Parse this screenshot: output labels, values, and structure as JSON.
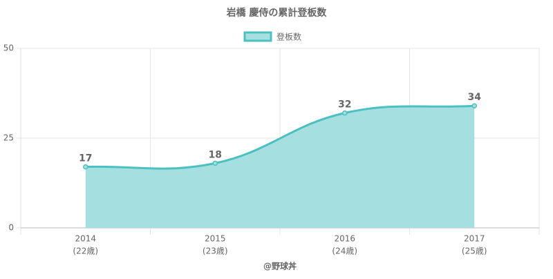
{
  "chart_data": {
    "type": "area",
    "title": "岩橋 慶侍の累計登板数",
    "categories": [
      "2014",
      "2015",
      "2016",
      "2017"
    ],
    "category_sublabels": [
      "(22歳)",
      "(23歳)",
      "(24歳)",
      "(25歳)"
    ],
    "x_label": "@野球丼",
    "series": [
      {
        "name": "登板数",
        "color": "#4bc0c0",
        "fill": "#a5dfdf",
        "values": [
          17,
          18,
          32,
          34
        ]
      }
    ],
    "ylim": [
      0,
      50
    ],
    "yticks": [
      0,
      25,
      50
    ],
    "grid": true,
    "legend": "top"
  }
}
